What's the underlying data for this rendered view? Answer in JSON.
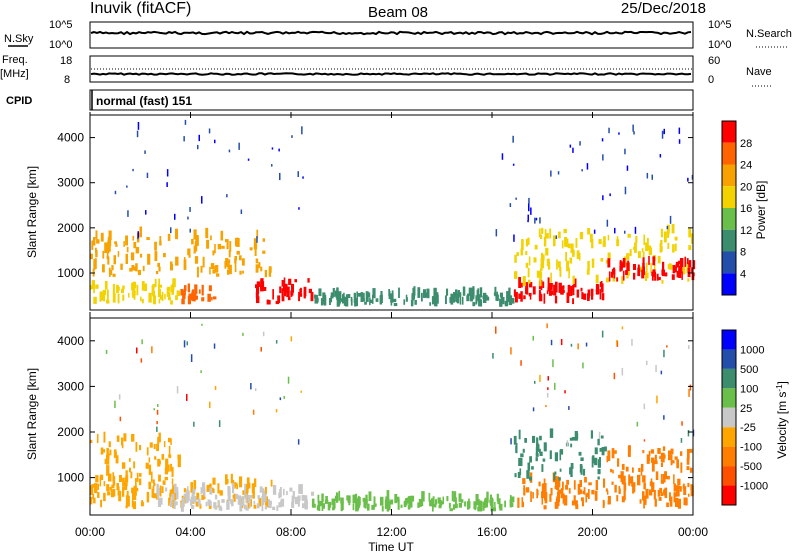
{
  "header": {
    "station": "Inuvik (fitACF)",
    "beam": "Beam 08",
    "date": "25/Dec/2018"
  },
  "noise_panel": {
    "left_label": "N.Sky",
    "right_label": "N.Search",
    "ticks": [
      "10^5",
      "10^0"
    ]
  },
  "freq_panel": {
    "left_label_1": "Freq.",
    "left_label_2": "[MHz]",
    "left_ticks": [
      "18",
      "8"
    ],
    "right_label": "Nave",
    "right_ticks": [
      "60",
      "0"
    ]
  },
  "cpid_panel": {
    "label": "CPID",
    "text": "normal (fast) 151"
  },
  "colors": {
    "power_scale": [
      "#0000ff",
      "#234eaa",
      "#3c8c6e",
      "#6abf4b",
      "#f2d200",
      "#f7a200",
      "#ff6400",
      "#ff0000"
    ],
    "velocity_scale": [
      "#ff0000",
      "#ff5000",
      "#ff7d00",
      "#ffa500",
      "#c8c8c8",
      "#6abf4b",
      "#3c8c6e",
      "#234eaa",
      "#0000ff"
    ],
    "ground_scatter": "#bebebe"
  },
  "chart_data": [
    {
      "type": "heatmap",
      "name": "power",
      "ylabel": "Slant Range [km]",
      "ylim": [
        180,
        4500
      ],
      "yticks": [
        "4000",
        "3000",
        "2000",
        "1000"
      ],
      "xlim": [
        0,
        24
      ],
      "colorbar": {
        "label": "Power [dB]",
        "ticks": [
          "28",
          "24",
          "20",
          "16",
          "12",
          "8",
          "4"
        ],
        "range": [
          0,
          32
        ]
      },
      "regions": [
        {
          "t0": 0.0,
          "t1": 7.2,
          "r0": 900,
          "r1": 1800,
          "level": 22
        },
        {
          "t0": 0.0,
          "t1": 3.5,
          "r0": 300,
          "r1": 700,
          "level": 16
        },
        {
          "t0": 3.5,
          "t1": 5.0,
          "r0": 300,
          "r1": 600,
          "level": 26
        },
        {
          "t0": 6.5,
          "t1": 8.8,
          "r0": 300,
          "r1": 800,
          "level": 30
        },
        {
          "t0": 8.8,
          "t1": 16.8,
          "r0": 250,
          "r1": 500,
          "level": 10
        },
        {
          "t0": 16.8,
          "t1": 20.5,
          "r0": 300,
          "r1": 700,
          "level": 30
        },
        {
          "t0": 16.8,
          "t1": 24.0,
          "r0": 700,
          "r1": 1900,
          "level": 18
        },
        {
          "t0": 20.5,
          "t1": 24.0,
          "r0": 800,
          "r1": 1200,
          "level": 28
        }
      ]
    },
    {
      "type": "heatmap",
      "name": "velocity",
      "ylabel": "Slant Range [km]",
      "xlabel": "Time UT",
      "ylim": [
        180,
        4500
      ],
      "yticks": [
        "4000",
        "3000",
        "2000",
        "1000"
      ],
      "xticks": [
        "00:00",
        "04:00",
        "08:00",
        "12:00",
        "16:00",
        "20:00",
        "00:00"
      ],
      "xlim": [
        0,
        24
      ],
      "colorbar": {
        "label": "Velocity [m s",
        "label_sup": "-1",
        "label_end": "]",
        "ticks": [
          "1000",
          "500",
          "100",
          "25",
          "-25",
          "-100",
          "-500",
          "-1000"
        ]
      },
      "regions": [
        {
          "t0": 0.0,
          "t1": 3.5,
          "r0": 900,
          "r1": 1800,
          "level": 3
        },
        {
          "t0": 0.0,
          "t1": 7.2,
          "r0": 300,
          "r1": 900,
          "level": 3
        },
        {
          "t0": 2.5,
          "t1": 8.8,
          "r0": 250,
          "r1": 700,
          "level": 4
        },
        {
          "t0": 8.8,
          "t1": 16.8,
          "r0": 250,
          "r1": 500,
          "level": 5
        },
        {
          "t0": 16.8,
          "t1": 24.0,
          "r0": 300,
          "r1": 900,
          "level": 2
        },
        {
          "t0": 16.8,
          "t1": 20.5,
          "r0": 900,
          "r1": 1900,
          "level": 6
        },
        {
          "t0": 20.5,
          "t1": 24.0,
          "r0": 800,
          "r1": 1600,
          "level": 2
        }
      ]
    }
  ]
}
